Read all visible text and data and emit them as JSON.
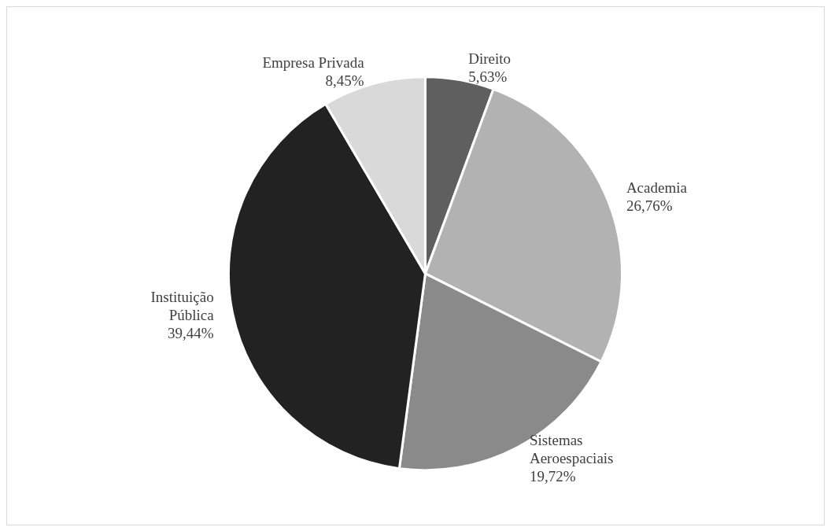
{
  "chart_data": {
    "type": "pie",
    "categories": [
      "Direito",
      "Academia",
      "Sistemas Aeroespaciais",
      "Instituição Pública",
      "Empresa Privada"
    ],
    "values": [
      5.63,
      26.76,
      19.72,
      39.44,
      8.45
    ],
    "colors": [
      "#5f5f5f",
      "#b2b2b2",
      "#8a8a8a",
      "#222222",
      "#d9d9d9"
    ],
    "value_labels": [
      "5,63%",
      "26,76%",
      "19,72%",
      "39,44%",
      "8,45%"
    ],
    "legend": false
  }
}
